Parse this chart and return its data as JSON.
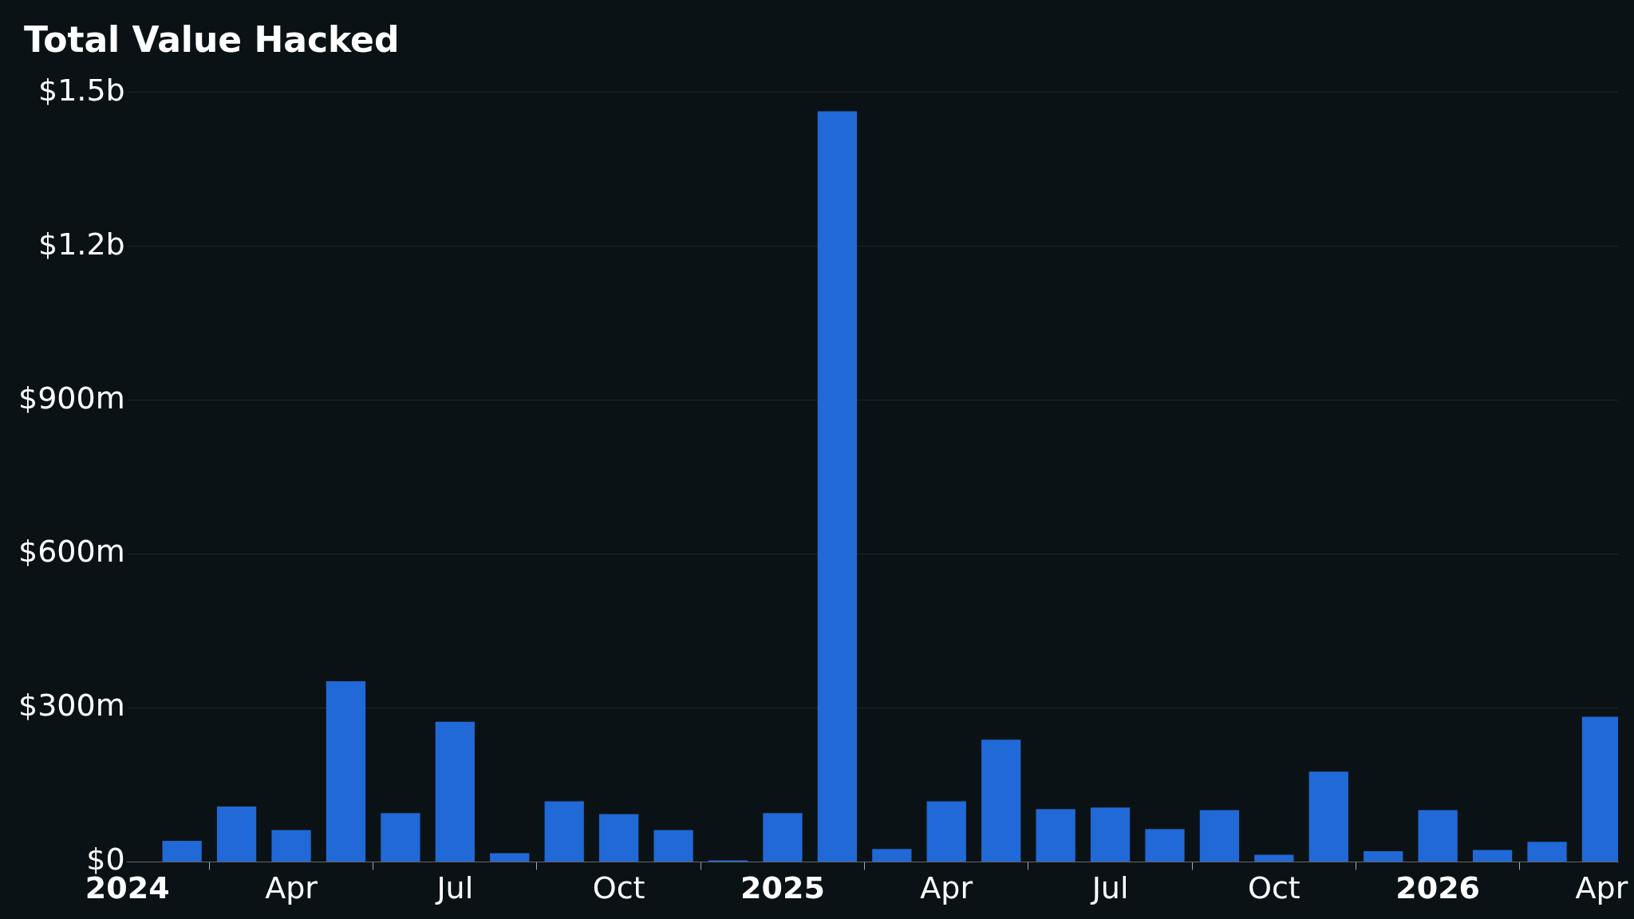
{
  "chart_data": {
    "type": "bar",
    "title": "Total Value Hacked",
    "x": [
      "2024-02",
      "2024-03",
      "2024-04",
      "2024-05",
      "2024-06",
      "2024-07",
      "2024-08",
      "2024-09",
      "2024-10",
      "2024-11",
      "2024-12",
      "2025-01",
      "2025-02",
      "2025-03",
      "2025-04",
      "2025-05",
      "2025-06",
      "2025-07",
      "2025-08",
      "2025-09",
      "2025-10",
      "2025-11",
      "2025-12",
      "2026-01",
      "2026-02",
      "2026-03",
      "2026-04"
    ],
    "values": [
      41000000,
      108000000,
      62000000,
      352000000,
      95000000,
      273000000,
      17000000,
      118000000,
      93000000,
      62000000,
      3000000,
      95000000,
      1463000000,
      25000000,
      118000000,
      238000000,
      103000000,
      106000000,
      64000000,
      101000000,
      14000000,
      176000000,
      21000000,
      101000000,
      23000000,
      39000000,
      283000000
    ],
    "color": "#2169d6",
    "xlim": [
      "2024-01-01",
      "2026-04-10"
    ],
    "xticks": [
      {
        "value": "2024-01",
        "label": "2024"
      },
      {
        "value": "2024-04",
        "label": "Apr"
      },
      {
        "value": "2024-07",
        "label": "Jul"
      },
      {
        "value": "2024-10",
        "label": "Oct"
      },
      {
        "value": "2025-01",
        "label": "2025"
      },
      {
        "value": "2025-04",
        "label": "Apr"
      },
      {
        "value": "2025-07",
        "label": "Jul"
      },
      {
        "value": "2025-10",
        "label": "Oct"
      },
      {
        "value": "2026-01",
        "label": "2026"
      },
      {
        "value": "2026-04",
        "label": "Apr"
      }
    ],
    "ylim": [
      0,
      1500000000
    ],
    "yticks": [
      {
        "value": 0,
        "label": "$0"
      },
      {
        "value": 300000000,
        "label": "$300m"
      },
      {
        "value": 600000000,
        "label": "$600m"
      },
      {
        "value": 900000000,
        "label": "$900m"
      },
      {
        "value": 1200000000,
        "label": "$1.2b"
      },
      {
        "value": 1500000000,
        "label": "$1.5b"
      }
    ],
    "grid": "y",
    "legend": false
  }
}
